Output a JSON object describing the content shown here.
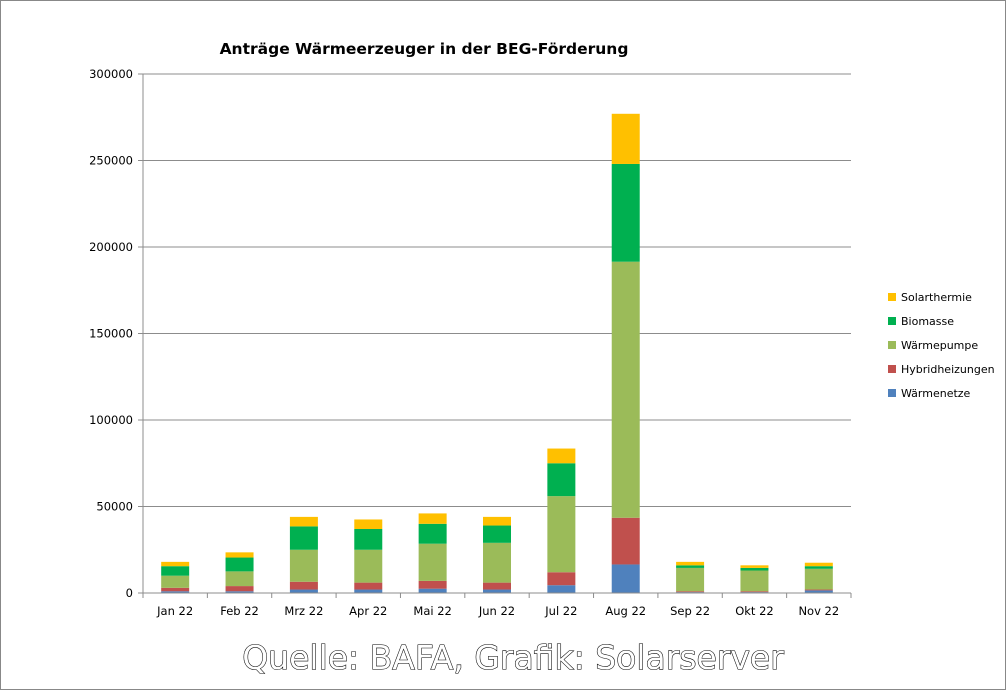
{
  "chart_data": {
    "type": "bar",
    "stacked": true,
    "title": "Anträge Wärmeerzeuger in der  BEG-Förderung",
    "xlabel": "",
    "ylabel": "",
    "categories": [
      "Jan 22",
      "Feb 22",
      "Mrz 22",
      "Apr 22",
      "Mai 22",
      "Jun 22",
      "Jul 22",
      "Aug 22",
      "Sep 22",
      "Okt 22",
      "Nov 22"
    ],
    "ylim": [
      0,
      300000
    ],
    "yticks": [
      "0",
      "50000",
      "100000",
      "150000",
      "200000",
      "250000",
      "300000"
    ],
    "grid": true,
    "legend_position": "right",
    "series": [
      {
        "name": "Wärmenetze",
        "color": "#4f81bd",
        "values": [
          1000,
          1000,
          2000,
          2000,
          2500,
          2000,
          4500,
          16500,
          500,
          500,
          1500
        ]
      },
      {
        "name": "Hybridheizungen",
        "color": "#c0504d",
        "values": [
          2000,
          3000,
          4500,
          4000,
          4500,
          4000,
          7500,
          27000,
          500,
          500,
          500
        ]
      },
      {
        "name": "Wärmepumpe",
        "color": "#9bbb59",
        "values": [
          7000,
          8500,
          18500,
          19000,
          21500,
          23000,
          44000,
          148000,
          13500,
          12000,
          12000
        ]
      },
      {
        "name": "Biomasse",
        "color": "#00b050",
        "values": [
          5500,
          8000,
          13500,
          12000,
          11500,
          10000,
          19000,
          56500,
          1500,
          1500,
          1500
        ]
      },
      {
        "name": "Solarthermie",
        "color": "#ffc000",
        "values": [
          2500,
          3000,
          5500,
          5500,
          6000,
          5000,
          8500,
          29000,
          2000,
          1500,
          2000
        ]
      }
    ],
    "source": "Quelle: BAFA, Grafik: Solarserver"
  }
}
